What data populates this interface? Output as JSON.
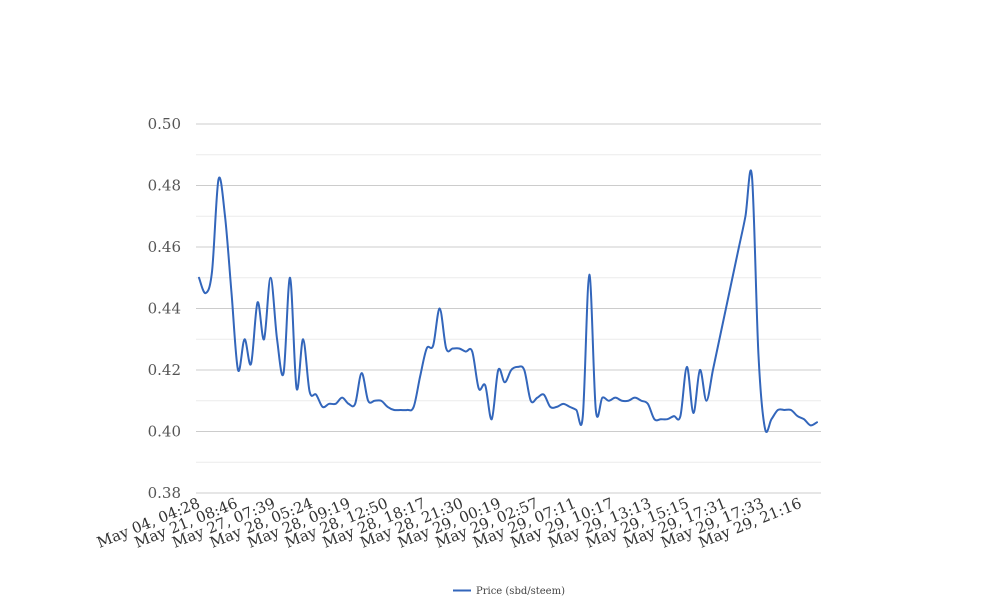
{
  "chart_data": {
    "type": "line",
    "title": "",
    "xlabel": "",
    "ylabel": "",
    "ylim": [
      0.38,
      0.5
    ],
    "yticks": [
      "0.38",
      "0.40",
      "0.42",
      "0.44",
      "0.46",
      "0.48",
      "0.50"
    ],
    "grid": true,
    "legend_position": "bottom-center",
    "x_tick_labels": [
      "May 04, 04:28",
      "May 21, 08:46",
      "May 27, 07:39",
      "May 28, 05:24",
      "May 28, 09:19",
      "May 28, 12:50",
      "May 28, 18:17",
      "May 28, 21:30",
      "May 29, 00:19",
      "May 29, 02:57",
      "May 29, 07:11",
      "May 29, 10:17",
      "May 29, 13:13",
      "May 29, 15:15",
      "May 29, 17:31",
      "May 29, 17:33",
      "May 29, 21:16"
    ],
    "series": [
      {
        "name": "Price (sbd/steem)",
        "color": "#3366bb",
        "values": [
          0.45,
          0.445,
          0.452,
          0.482,
          0.47,
          0.445,
          0.42,
          0.43,
          0.422,
          0.442,
          0.43,
          0.45,
          0.43,
          0.419,
          0.45,
          0.414,
          0.43,
          0.413,
          0.412,
          0.408,
          0.409,
          0.409,
          0.411,
          0.409,
          0.409,
          0.419,
          0.41,
          0.41,
          0.41,
          0.408,
          0.407,
          0.407,
          0.407,
          0.408,
          0.418,
          0.427,
          0.428,
          0.44,
          0.427,
          0.427,
          0.427,
          0.426,
          0.426,
          0.414,
          0.415,
          0.404,
          0.42,
          0.416,
          0.42,
          0.421,
          0.42,
          0.41,
          0.411,
          0.412,
          0.408,
          0.408,
          0.409,
          0.408,
          0.407,
          0.405,
          0.451,
          0.407,
          0.411,
          0.41,
          0.411,
          0.41,
          0.41,
          0.411,
          0.41,
          0.409,
          0.404,
          0.404,
          0.404,
          0.405,
          0.405,
          0.421,
          0.406,
          0.42,
          0.41,
          0.42,
          0.43,
          0.44,
          0.45,
          0.46,
          0.47,
          0.483,
          0.425,
          0.401,
          0.404,
          0.407,
          0.407,
          0.407,
          0.405,
          0.404,
          0.402,
          0.403
        ]
      }
    ]
  }
}
